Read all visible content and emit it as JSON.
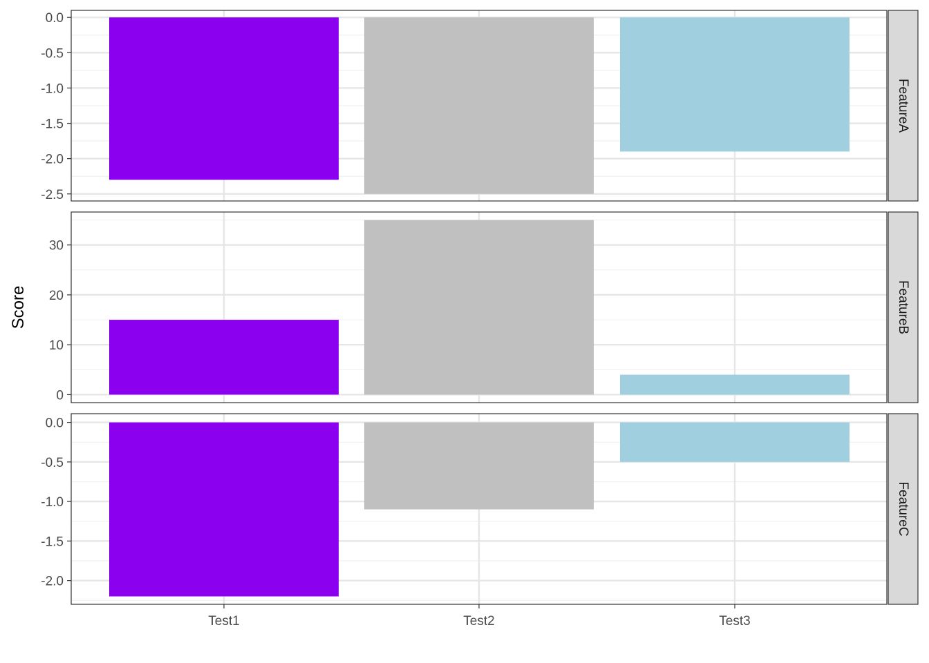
{
  "chart_data": {
    "type": "bar",
    "ylabel": "Score",
    "xlabel": "",
    "categories": [
      "Test1",
      "Test2",
      "Test3"
    ],
    "colors": [
      "#8B00EE",
      "#C0C0C0",
      "#A0CFE0"
    ],
    "facets": [
      {
        "name": "FeatureA",
        "values": [
          -2.3,
          -2.5,
          -1.9
        ],
        "ylim": [
          -2.6,
          0.1
        ],
        "ticks": [
          0.0,
          -0.5,
          -1.0,
          -1.5,
          -2.0,
          -2.5
        ],
        "tick_labels": [
          "0.0",
          "-0.5",
          "-1.0",
          "-1.5",
          "-2.0",
          "-2.5"
        ]
      },
      {
        "name": "FeatureB",
        "values": [
          15,
          35,
          4
        ],
        "ylim": [
          -1.6,
          36.6
        ],
        "ticks": [
          0,
          10,
          20,
          30
        ],
        "tick_labels": [
          "0",
          "10",
          "20",
          "30"
        ]
      },
      {
        "name": "FeatureC",
        "values": [
          -2.2,
          -1.1,
          -0.5
        ],
        "ylim": [
          -2.3,
          0.11
        ],
        "ticks": [
          0.0,
          -0.5,
          -1.0,
          -1.5,
          -2.0
        ],
        "tick_labels": [
          "0.0",
          "-0.5",
          "-1.0",
          "-1.5",
          "-2.0"
        ]
      }
    ],
    "grid": true,
    "legend": "none"
  }
}
